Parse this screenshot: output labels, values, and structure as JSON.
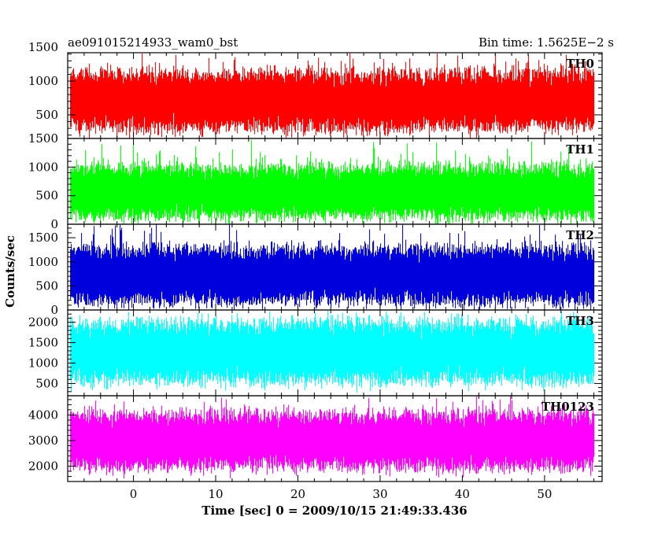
{
  "header": {
    "left_title": "ae091015214933_wam0_bst",
    "right_title": "Bin time: 1.5625E−2 s"
  },
  "chart_data": {
    "type": "line",
    "xlabel": "Time [sec] 0 = 2009/10/15 21:49:33.436",
    "ylabel": "Counts/sec",
    "xlim": [
      -8,
      57
    ],
    "x_ticks": [
      "0",
      "10",
      "20",
      "30",
      "40",
      "50"
    ],
    "x_tick_values": [
      0,
      10,
      20,
      30,
      40,
      50
    ],
    "data_x_range": [
      -7.7,
      56.1
    ],
    "bin_time": 0.015625,
    "grid": false,
    "panels": [
      {
        "name": "TH0",
        "color": "#ff0000",
        "ylim": [
          150,
          1420
        ],
        "y_ticks": [
          "500",
          "1000",
          "1500"
        ],
        "y_tick_values": [
          500,
          1000,
          1500
        ],
        "mean": 820,
        "band": [
          320,
          1100
        ],
        "min": 170,
        "max": 1420
      },
      {
        "name": "TH1",
        "color": "#00ff00",
        "ylim": [
          0,
          1500
        ],
        "y_ticks": [
          "0",
          "500",
          "1000",
          "1500"
        ],
        "y_tick_values": [
          0,
          500,
          1000,
          1500
        ],
        "mean": 560,
        "band": [
          150,
          980
        ],
        "min": 30,
        "max": 1480
      },
      {
        "name": "TH2",
        "color": "#0000dd",
        "ylim": [
          0,
          1780
        ],
        "y_ticks": [
          "0",
          "500",
          "1000",
          "1500"
        ],
        "y_tick_values": [
          0,
          500,
          1000,
          1500
        ],
        "mean": 780,
        "band": [
          200,
          1250
        ],
        "min": 20,
        "max": 1780
      },
      {
        "name": "TH3",
        "color": "#00ffff",
        "ylim": [
          200,
          2300
        ],
        "y_ticks": [
          "500",
          "1000",
          "1500",
          "2000"
        ],
        "y_tick_values": [
          500,
          1000,
          1500,
          2000
        ],
        "mean": 1300,
        "band": [
          600,
          1950
        ],
        "min": 380,
        "max": 2300
      },
      {
        "name": "TH0123",
        "color": "#ff00ff",
        "ylim": [
          1400,
          4750
        ],
        "y_ticks": [
          "2000",
          "3000",
          "4000"
        ],
        "y_tick_values": [
          2000,
          3000,
          4000
        ],
        "mean": 3000,
        "band": [
          2000,
          4000
        ],
        "min": 1650,
        "max": 4750
      }
    ]
  }
}
